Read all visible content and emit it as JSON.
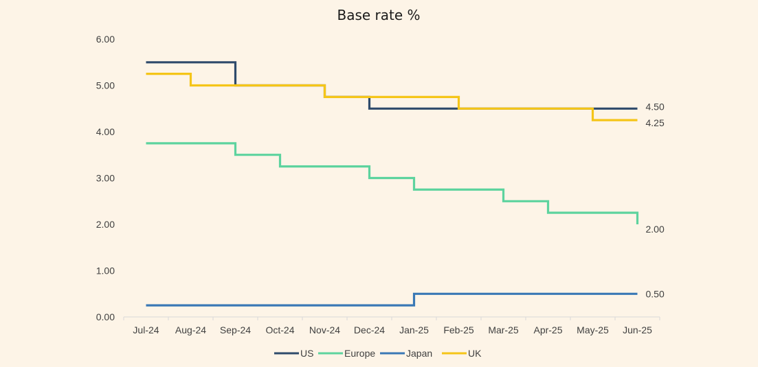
{
  "chart_data": {
    "type": "line",
    "title": "Base rate %",
    "xlabel": "",
    "ylabel": "",
    "categories": [
      "Jul-24",
      "Aug-24",
      "Sep-24",
      "Oct-24",
      "Nov-24",
      "Dec-24",
      "Jan-25",
      "Feb-25",
      "Mar-25",
      "Apr-25",
      "May-25",
      "Jun-25"
    ],
    "ylim": [
      0,
      6
    ],
    "yticks": [
      "0.00",
      "1.00",
      "2.00",
      "3.00",
      "4.00",
      "5.00",
      "6.00"
    ],
    "grid": false,
    "legend_position": "bottom",
    "step": true,
    "series": [
      {
        "name": "US",
        "color": "#2E4A6B",
        "end_label": "4.50",
        "points": [
          [
            0,
            5.5
          ],
          [
            2,
            5.5
          ],
          [
            2,
            5.0
          ],
          [
            4,
            5.0
          ],
          [
            4,
            4.75
          ],
          [
            5,
            4.75
          ],
          [
            5,
            4.5
          ],
          [
            11,
            4.5
          ]
        ]
      },
      {
        "name": "Europe",
        "color": "#5DD39E",
        "end_label": "2.00",
        "points": [
          [
            0,
            3.75
          ],
          [
            2,
            3.75
          ],
          [
            2,
            3.5
          ],
          [
            3,
            3.5
          ],
          [
            3,
            3.25
          ],
          [
            5,
            3.25
          ],
          [
            5,
            3.0
          ],
          [
            6,
            3.0
          ],
          [
            6,
            2.75
          ],
          [
            8,
            2.75
          ],
          [
            8,
            2.5
          ],
          [
            9,
            2.5
          ],
          [
            9,
            2.25
          ],
          [
            11,
            2.25
          ],
          [
            11,
            2.0
          ]
        ]
      },
      {
        "name": "Japan",
        "color": "#3A78B5",
        "end_label": "0.50",
        "points": [
          [
            0,
            0.25
          ],
          [
            6,
            0.25
          ],
          [
            6,
            0.5
          ],
          [
            11,
            0.5
          ]
        ]
      },
      {
        "name": "UK",
        "color": "#F5C518",
        "end_label": "4.25",
        "points": [
          [
            0,
            5.25
          ],
          [
            1,
            5.25
          ],
          [
            1,
            5.0
          ],
          [
            4,
            5.0
          ],
          [
            4,
            4.75
          ],
          [
            7,
            4.75
          ],
          [
            7,
            4.5
          ],
          [
            10,
            4.5
          ],
          [
            10,
            4.25
          ],
          [
            11,
            4.25
          ]
        ]
      }
    ]
  }
}
